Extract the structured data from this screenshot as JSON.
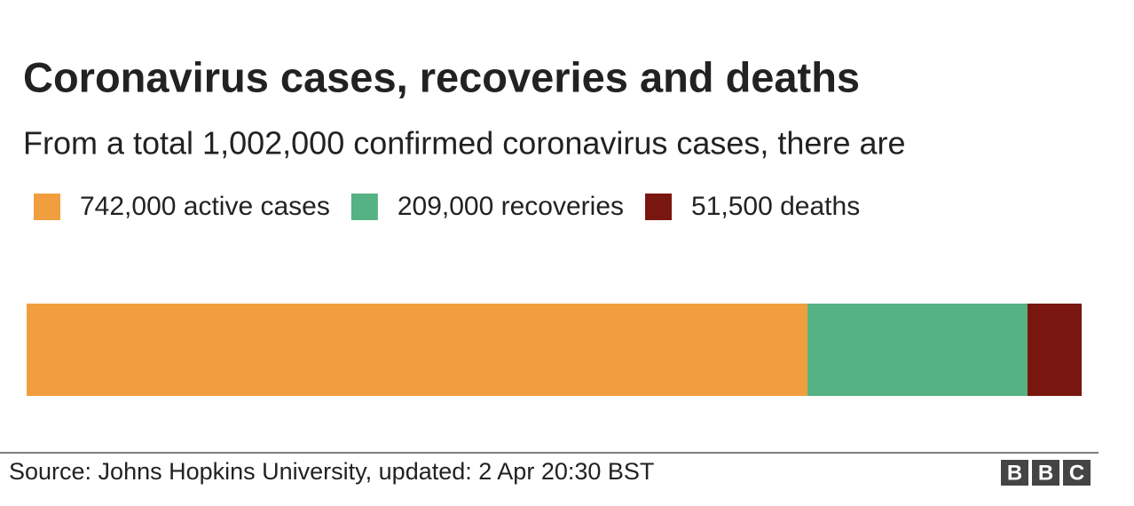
{
  "chart_data": {
    "type": "stacked-bar",
    "title": "Coronavirus cases, recoveries and deaths",
    "subtitle": "From a total 1,002,000 confirmed coronavirus cases, there are",
    "series": [
      {
        "name": "742,000 active cases",
        "color": "#f19f3e",
        "values": [
          742000
        ]
      },
      {
        "name": "209,000 recoveries",
        "color": "#55b283",
        "values": [
          209000
        ]
      },
      {
        "name": "51,500 deaths",
        "color": "#7a1610",
        "values": [
          51500
        ]
      }
    ],
    "source": "Source: Johns Hopkins University, updated:  2 Apr 20:30 BST",
    "logo": [
      "B",
      "B",
      "C"
    ]
  }
}
